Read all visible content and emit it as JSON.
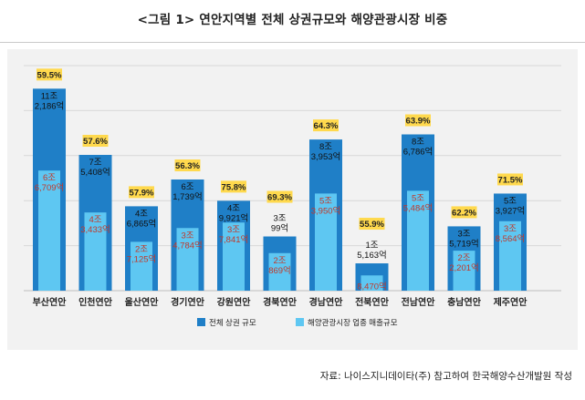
{
  "figure": {
    "title": "<그림 1> 연안지역별 전체 상권규모와 해양관광시장 비중",
    "source": "자료: 나이스지니데이타(주) 참고하여 한국해양수산개발원 작성"
  },
  "colors": {
    "total_bar": "#1f7fc7",
    "tourism_bar": "#5ec7f2",
    "pct_badge": "#ffd94d",
    "tourism_label": "#c0392b",
    "grid": "#d8d8d8"
  },
  "chart_data": {
    "type": "bar",
    "categories": [
      "부산연안",
      "인천연안",
      "울산연안",
      "경기연안",
      "강원연안",
      "경북연안",
      "경남연안",
      "전북연안",
      "전남연안",
      "충남연안",
      "제주연안"
    ],
    "series": [
      {
        "name": "전체 상권 규모",
        "values": [
          112186,
          75408,
          46865,
          61739,
          49921,
          30099,
          83953,
          15163,
          86786,
          35719,
          53927
        ],
        "labels": [
          [
            "11조",
            "2,186억"
          ],
          [
            "7조",
            "5,408억"
          ],
          [
            "4조",
            "6,865억"
          ],
          [
            "6조",
            "1,739억"
          ],
          [
            "4조",
            "9,921억"
          ],
          [
            "3조",
            "99억"
          ],
          [
            "8조",
            "3,953억"
          ],
          [
            "1조",
            "5,163억"
          ],
          [
            "8조",
            "6,786억"
          ],
          [
            "3조",
            "5,719억"
          ],
          [
            "5조",
            "3,927억"
          ]
        ]
      },
      {
        "name": "해양관광시장 업종 매출규모",
        "values": [
          66709,
          43433,
          27125,
          34784,
          37841,
          20869,
          53950,
          8470,
          55484,
          22201,
          38564
        ],
        "labels": [
          [
            "6조",
            "6,709억"
          ],
          [
            "4조",
            "3,433억"
          ],
          [
            "2조",
            "7,125억"
          ],
          [
            "3조",
            "4,784억"
          ],
          [
            "3조",
            "7,841억"
          ],
          [
            "2조",
            "869억"
          ],
          [
            "5조",
            "3,950억"
          ],
          [
            "",
            "8,470억"
          ],
          [
            "5조",
            "5,484억"
          ],
          [
            "2조",
            "2,201억"
          ],
          [
            "3조",
            "8,564억"
          ]
        ]
      }
    ],
    "percentages": [
      "59.5%",
      "57.6%",
      "57.9%",
      "56.3%",
      "75.8%",
      "69.3%",
      "64.3%",
      "55.9%",
      "63.9%",
      "62.2%",
      "71.5%"
    ],
    "unit": "억원",
    "ylim": [
      0,
      125000
    ],
    "grid": true,
    "legend_position": "bottom"
  }
}
